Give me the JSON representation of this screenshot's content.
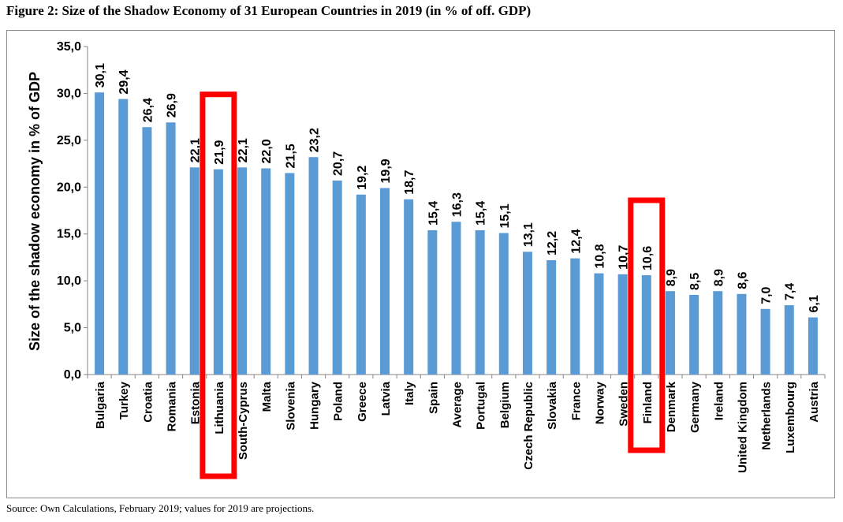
{
  "figure": {
    "title": "Figure 2: Size of the Shadow Economy of 31 European Countries in 2019 (in % of off. GDP)",
    "source": "Source: Own Calculations, February 2019; values for 2019 are projections."
  },
  "colors": {
    "bar": "#5b9bd5",
    "highlight_box": "#ff0000",
    "frame": "#8c8c8c"
  },
  "chart_data": {
    "type": "bar",
    "title": "",
    "ylabel": "Size of the shadow economy in % of GDP",
    "xlabel": "",
    "ylim": [
      0,
      35
    ],
    "yticks": [
      "0,0",
      "5,0",
      "10,0",
      "15,0",
      "20,0",
      "25,0",
      "30,0",
      "35,0"
    ],
    "grid": false,
    "legend": "none",
    "categories": [
      "Bulgaria",
      "Turkey",
      "Croatia",
      "Romania",
      "Estonia",
      "Lithuania",
      "South-Cyprus",
      "Malta",
      "Slovenia",
      "Hungary",
      "Poland",
      "Greece",
      "Latvia",
      "Italy",
      "Spain",
      "Average",
      "Portugal",
      "Belgium",
      "Czech Republic",
      "Slovakia",
      "France",
      "Norway",
      "Sweden",
      "Finland",
      "Denmark",
      "Germany",
      "Ireland",
      "United Kingdom",
      "Netherlands",
      "Luxembourg",
      "Austria"
    ],
    "values": [
      30.1,
      29.4,
      26.4,
      26.9,
      22.1,
      21.9,
      22.1,
      22.0,
      21.5,
      23.2,
      20.7,
      19.2,
      19.9,
      18.7,
      15.4,
      16.3,
      15.4,
      15.1,
      13.1,
      12.2,
      12.4,
      10.8,
      10.7,
      10.6,
      8.9,
      8.5,
      8.9,
      8.6,
      7.0,
      7.4,
      6.1
    ],
    "value_labels": [
      "30,1",
      "29,4",
      "26,4",
      "26,9",
      "22,1",
      "21,9",
      "22,1",
      "22,0",
      "21,5",
      "23,2",
      "20,7",
      "19,2",
      "19,9",
      "18,7",
      "15,4",
      "16,3",
      "15,4",
      "15,1",
      "13,1",
      "12,2",
      "12,4",
      "10,8",
      "10,7",
      "10,6",
      "8,9",
      "8,5",
      "8,9",
      "8,6",
      "7,0",
      "7,4",
      "6,1"
    ],
    "highlighted": [
      "Lithuania",
      "Finland"
    ]
  }
}
